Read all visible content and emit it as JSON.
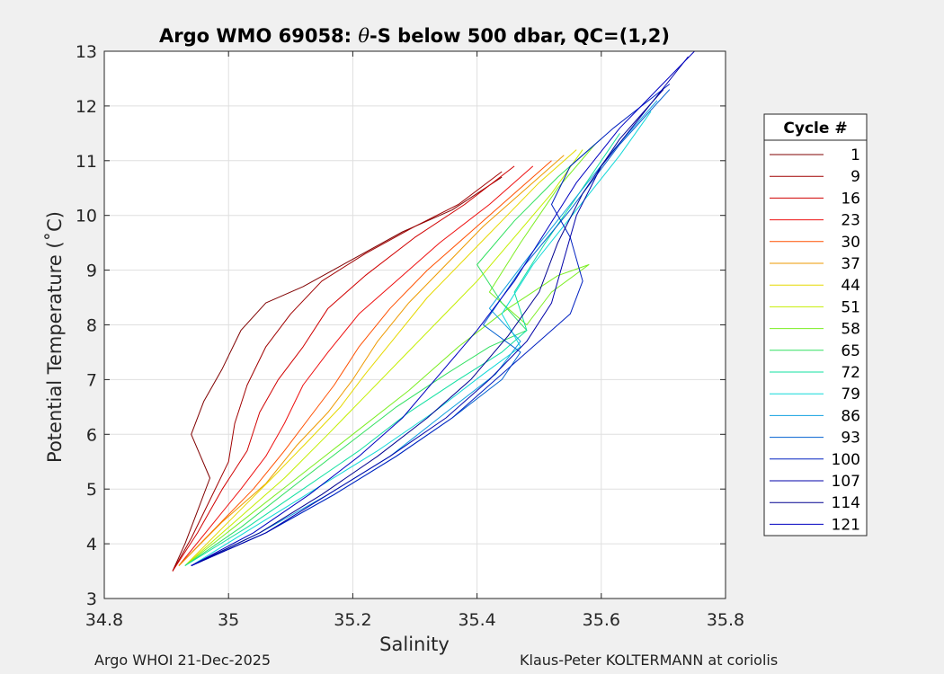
{
  "chart_data": {
    "type": "line",
    "title_prefix": "Argo WMO 69058: ",
    "title_symbol": "θ",
    "title_suffix": "-S below 500 dbar,  QC=(1,2)",
    "xlabel": "Salinity",
    "ylabel": "Potential Temperature (˚C)",
    "xlim": [
      34.8,
      35.8
    ],
    "ylim": [
      3,
      13
    ],
    "xticks": [
      34.8,
      35,
      35.2,
      35.4,
      35.6,
      35.8
    ],
    "xtick_labels": [
      "34.8",
      "35",
      "35.2",
      "35.4",
      "35.6",
      "35.8"
    ],
    "yticks": [
      3,
      4,
      5,
      6,
      7,
      8,
      9,
      10,
      11,
      12,
      13
    ],
    "ytick_labels": [
      "3",
      "4",
      "5",
      "6",
      "7",
      "8",
      "9",
      "10",
      "11",
      "12",
      "13"
    ],
    "grid": true,
    "legend_title": "Cycle #",
    "legend_placement": "right",
    "series": [
      {
        "name": "1",
        "color": "#800000",
        "x": [
          34.91,
          34.93,
          34.95,
          34.97,
          34.94,
          34.96,
          34.99,
          35.02,
          35.06,
          35.12,
          35.2,
          35.28,
          35.36,
          35.44
        ],
        "y": [
          3.5,
          4.0,
          4.6,
          5.2,
          6.0,
          6.6,
          7.2,
          7.9,
          8.4,
          8.7,
          9.2,
          9.7,
          10.1,
          10.7
        ]
      },
      {
        "name": "9",
        "color": "#a00000",
        "x": [
          34.91,
          34.94,
          34.97,
          35.0,
          35.01,
          35.03,
          35.06,
          35.1,
          35.15,
          35.22,
          35.3,
          35.37,
          35.44
        ],
        "y": [
          3.5,
          4.1,
          4.8,
          5.5,
          6.2,
          6.9,
          7.6,
          8.2,
          8.8,
          9.3,
          9.8,
          10.2,
          10.8
        ]
      },
      {
        "name": "16",
        "color": "#d00000",
        "x": [
          34.91,
          34.95,
          34.99,
          35.03,
          35.05,
          35.08,
          35.12,
          35.16,
          35.22,
          35.3,
          35.38,
          35.46
        ],
        "y": [
          3.5,
          4.2,
          5.0,
          5.7,
          6.4,
          7.0,
          7.6,
          8.3,
          8.9,
          9.6,
          10.2,
          10.9
        ]
      },
      {
        "name": "23",
        "color": "#ee1010",
        "x": [
          34.92,
          34.97,
          35.02,
          35.06,
          35.09,
          35.12,
          35.16,
          35.21,
          35.27,
          35.34,
          35.42,
          35.49
        ],
        "y": [
          3.6,
          4.3,
          5.0,
          5.6,
          6.2,
          6.9,
          7.5,
          8.2,
          8.8,
          9.5,
          10.2,
          10.9
        ]
      },
      {
        "name": "30",
        "color": "#ff5000",
        "x": [
          34.92,
          34.98,
          35.04,
          35.09,
          35.13,
          35.17,
          35.21,
          35.26,
          35.32,
          35.39,
          35.46,
          35.52
        ],
        "y": [
          3.6,
          4.3,
          5.0,
          5.7,
          6.3,
          6.9,
          7.6,
          8.3,
          9.0,
          9.7,
          10.4,
          11.0
        ]
      },
      {
        "name": "37",
        "color": "#ee9a00",
        "x": [
          34.92,
          34.99,
          35.06,
          35.11,
          35.16,
          35.2,
          35.24,
          35.29,
          35.35,
          35.41,
          35.48,
          35.54
        ],
        "y": [
          3.6,
          4.4,
          5.1,
          5.8,
          6.4,
          7.0,
          7.7,
          8.4,
          9.1,
          9.8,
          10.5,
          11.1
        ]
      },
      {
        "name": "44",
        "color": "#e6d800",
        "x": [
          34.93,
          35.0,
          35.07,
          35.13,
          35.18,
          35.22,
          35.27,
          35.32,
          35.38,
          35.44,
          35.5,
          35.56
        ],
        "y": [
          3.6,
          4.4,
          5.2,
          5.9,
          6.5,
          7.1,
          7.8,
          8.5,
          9.2,
          9.9,
          10.6,
          11.2
        ]
      },
      {
        "name": "51",
        "color": "#c4ee00",
        "x": [
          34.93,
          35.01,
          35.09,
          35.16,
          35.22,
          35.28,
          35.34,
          35.4,
          35.46,
          35.52,
          35.57
        ],
        "y": [
          3.6,
          4.4,
          5.2,
          6.0,
          6.7,
          7.4,
          8.1,
          8.8,
          9.6,
          10.4,
          11.2
        ]
      },
      {
        "name": "58",
        "color": "#7cee22",
        "x": [
          34.93,
          35.02,
          35.11,
          35.2,
          35.29,
          35.37,
          35.45,
          35.53,
          35.58,
          35.52,
          35.48,
          35.42,
          35.47,
          35.53,
          35.59
        ],
        "y": [
          3.6,
          4.4,
          5.2,
          6.0,
          6.8,
          7.6,
          8.3,
          8.9,
          9.1,
          8.6,
          8.0,
          8.6,
          9.5,
          10.5,
          11.3
        ]
      },
      {
        "name": "65",
        "color": "#30e060",
        "x": [
          34.93,
          35.02,
          35.11,
          35.19,
          35.27,
          35.35,
          35.42,
          35.48,
          35.44,
          35.4,
          35.46,
          35.53,
          35.6
        ],
        "y": [
          3.6,
          4.3,
          5.1,
          5.8,
          6.5,
          7.1,
          7.6,
          7.9,
          8.4,
          9.1,
          9.9,
          10.7,
          11.4
        ]
      },
      {
        "name": "72",
        "color": "#10e0a0",
        "x": [
          34.93,
          35.03,
          35.12,
          35.21,
          35.29,
          35.37,
          35.44,
          35.48,
          35.46,
          35.51,
          35.57,
          35.63
        ],
        "y": [
          3.6,
          4.3,
          5.0,
          5.7,
          6.4,
          7.0,
          7.5,
          7.9,
          8.6,
          9.5,
          10.5,
          11.5
        ]
      },
      {
        "name": "79",
        "color": "#10d8d8",
        "x": [
          34.94,
          35.04,
          35.14,
          35.24,
          35.33,
          35.41,
          35.47,
          35.44,
          35.49,
          35.56,
          35.63,
          35.68
        ],
        "y": [
          3.6,
          4.3,
          5.0,
          5.7,
          6.4,
          7.1,
          7.6,
          8.2,
          9.1,
          10.1,
          11.1,
          11.9
        ]
      },
      {
        "name": "86",
        "color": "#10a0e0",
        "x": [
          34.94,
          35.05,
          35.16,
          35.26,
          35.35,
          35.43,
          35.47,
          35.42,
          35.48,
          35.55,
          35.62,
          35.69
        ],
        "y": [
          3.6,
          4.2,
          4.9,
          5.6,
          6.4,
          7.1,
          7.7,
          8.3,
          9.2,
          10.2,
          11.2,
          12.1
        ]
      },
      {
        "name": "93",
        "color": "#0060d0",
        "x": [
          34.94,
          35.06,
          35.17,
          35.27,
          35.36,
          35.44,
          35.47,
          35.41,
          35.47,
          35.55,
          35.63,
          35.71
        ],
        "y": [
          3.6,
          4.2,
          4.9,
          5.6,
          6.3,
          7.0,
          7.5,
          8.0,
          9.0,
          10.1,
          11.3,
          12.3
        ]
      },
      {
        "name": "100",
        "color": "#0020c0",
        "x": [
          34.94,
          35.06,
          35.17,
          35.27,
          35.36,
          35.43,
          35.49,
          35.55,
          35.57,
          35.55,
          35.52,
          35.55,
          35.62,
          35.71
        ],
        "y": [
          3.6,
          4.2,
          4.9,
          5.6,
          6.3,
          7.0,
          7.6,
          8.2,
          8.8,
          9.6,
          10.2,
          10.9,
          11.6,
          12.4
        ]
      },
      {
        "name": "107",
        "color": "#0000a8",
        "x": [
          34.94,
          35.06,
          35.16,
          35.26,
          35.35,
          35.42,
          35.48,
          35.52,
          35.54,
          35.56,
          35.6,
          35.67,
          35.74
        ],
        "y": [
          3.6,
          4.2,
          4.9,
          5.6,
          6.3,
          7.0,
          7.7,
          8.4,
          9.2,
          10.0,
          10.9,
          11.9,
          12.9
        ]
      },
      {
        "name": "114",
        "color": "#000090",
        "x": [
          34.94,
          35.05,
          35.15,
          35.24,
          35.32,
          35.39,
          35.45,
          35.5,
          35.53,
          35.57,
          35.63,
          35.7
        ],
        "y": [
          3.6,
          4.2,
          4.9,
          5.6,
          6.3,
          7.0,
          7.8,
          8.6,
          9.5,
          10.4,
          11.4,
          12.3
        ]
      },
      {
        "name": "121",
        "color": "#0000c0",
        "x": [
          34.94,
          35.04,
          35.13,
          35.21,
          35.28,
          35.34,
          35.4,
          35.46,
          35.51,
          35.56,
          35.63,
          35.75
        ],
        "y": [
          3.6,
          4.2,
          4.9,
          5.6,
          6.3,
          7.1,
          7.9,
          8.8,
          9.7,
          10.6,
          11.6,
          13.0
        ]
      }
    ]
  },
  "footer": {
    "left": "Argo WHOI 21-Dec-2025",
    "right": "Klaus-Peter KOLTERMANN at coriolis"
  }
}
